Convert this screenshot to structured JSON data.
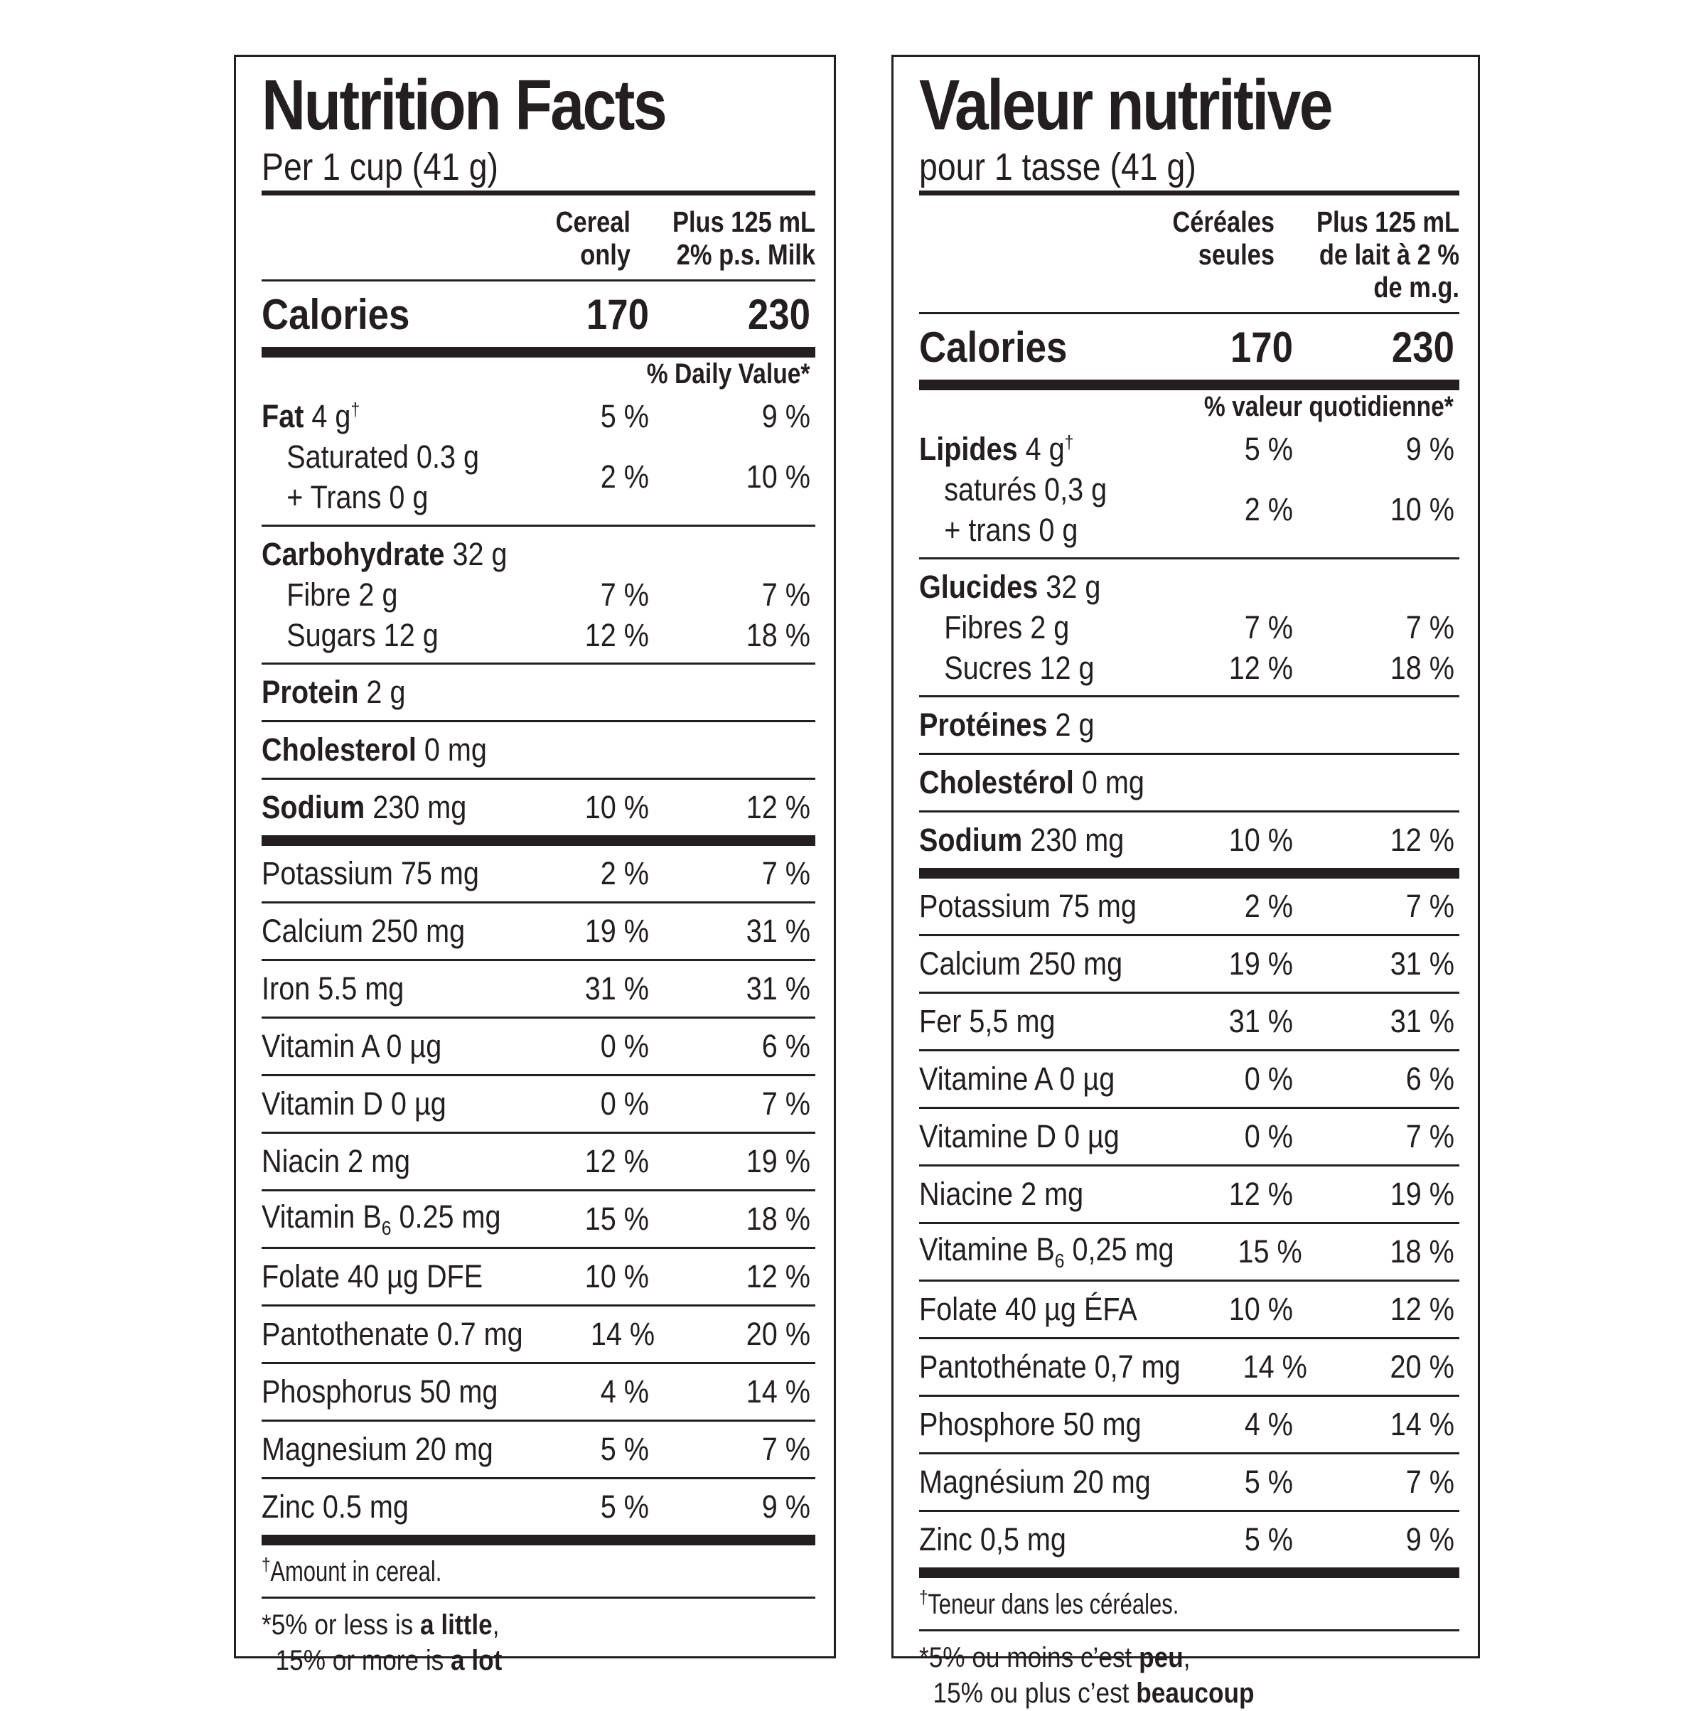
{
  "panels": [
    {
      "lang": "en",
      "title": "Nutrition Facts",
      "serving": "Per 1 cup (41 g)",
      "col_headers": [
        [
          "Cereal",
          "only"
        ],
        [
          "Plus 125 mL",
          "2% p.s. Milk"
        ]
      ],
      "calories": {
        "label": "Calories",
        "v1": "170",
        "v2": "230"
      },
      "dv_header": "% Daily Value*",
      "fat": {
        "name": "Fat",
        "amount": " 4 g",
        "dagger": "†",
        "v1": "5 %",
        "v2": "9 %",
        "sub_lines": [
          "Saturated 0.3 g",
          "+ Trans 0 g"
        ],
        "sub_v1": "2 %",
        "sub_v2": "10 %"
      },
      "carb": {
        "name": "Carbohydrate",
        "amount": " 32 g",
        "rows": [
          {
            "label": "Fibre 2 g",
            "v1": "7 %",
            "v2": "7 %"
          },
          {
            "label": "Sugars 12 g",
            "v1": "12 %",
            "v2": "18 %"
          }
        ]
      },
      "protein": {
        "name": "Protein",
        "amount": " 2 g"
      },
      "cholesterol": {
        "name": "Cholesterol",
        "amount": " 0 mg"
      },
      "sodium": {
        "name": "Sodium",
        "amount": " 230 mg",
        "v1": "10 %",
        "v2": "12 %"
      },
      "micros": [
        {
          "label": "Potassium 75 mg",
          "v1": "2 %",
          "v2": "7 %"
        },
        {
          "label": "Calcium 250 mg",
          "v1": "19 %",
          "v2": "31 %"
        },
        {
          "label": "Iron 5.5 mg",
          "v1": "31 %",
          "v2": "31 %"
        },
        {
          "label": "Vitamin A 0 µg",
          "v1": "0 %",
          "v2": "6 %"
        },
        {
          "label": "Vitamin D 0 µg",
          "v1": "0 %",
          "v2": "7 %"
        },
        {
          "label": "Niacin 2 mg",
          "v1": "12 %",
          "v2": "19 %"
        },
        {
          "label": "Vitamin B",
          "sub": "6",
          "rest": " 0.25 mg",
          "v1": "15 %",
          "v2": "18 %"
        },
        {
          "label": "Folate 40 µg DFE",
          "v1": "10 %",
          "v2": "12 %"
        },
        {
          "label": "Pantothenate 0.7 mg",
          "v1": "14 %",
          "v2": "20 %"
        },
        {
          "label": "Phosphorus 50 mg",
          "v1": "4 %",
          "v2": "14 %"
        },
        {
          "label": "Magnesium 20 mg",
          "v1": "5 %",
          "v2": "7 %"
        },
        {
          "label": "Zinc 0.5 mg",
          "v1": "5 %",
          "v2": "9 %"
        }
      ],
      "footnote_dagger": {
        "mark": "†",
        "text": " Amount in cereal."
      },
      "footnote_star": [
        [
          {
            "t": "*5% or less is "
          },
          {
            "t": "a little",
            "b": true
          },
          {
            "t": ","
          }
        ],
        [
          {
            "t": "  15% or more is "
          },
          {
            "t": "a lot",
            "b": true
          }
        ]
      ]
    },
    {
      "lang": "fr",
      "title": "Valeur nutritive",
      "serving": "pour 1 tasse (41 g)",
      "col_headers": [
        [
          "Céréales",
          "seules"
        ],
        [
          "Plus 125 mL",
          "de lait à 2 %",
          "de m.g."
        ]
      ],
      "calories": {
        "label": "Calories",
        "v1": "170",
        "v2": "230"
      },
      "dv_header": "% valeur quotidienne*",
      "fat": {
        "name": "Lipides",
        "amount": " 4 g",
        "dagger": "†",
        "v1": "5 %",
        "v2": "9 %",
        "sub_lines": [
          "saturés 0,3 g",
          "+ trans 0 g"
        ],
        "sub_v1": "2 %",
        "sub_v2": "10 %"
      },
      "carb": {
        "name": "Glucides",
        "amount": " 32 g",
        "rows": [
          {
            "label": "Fibres 2 g",
            "v1": "7 %",
            "v2": "7 %"
          },
          {
            "label": "Sucres 12 g",
            "v1": "12 %",
            "v2": "18 %"
          }
        ]
      },
      "protein": {
        "name": "Protéines",
        "amount": " 2 g"
      },
      "cholesterol": {
        "name": "Cholestérol",
        "amount": " 0 mg"
      },
      "sodium": {
        "name": "Sodium",
        "amount": " 230 mg",
        "v1": "10 %",
        "v2": "12 %"
      },
      "micros": [
        {
          "label": "Potassium 75 mg",
          "v1": "2 %",
          "v2": "7 %"
        },
        {
          "label": "Calcium 250 mg",
          "v1": "19 %",
          "v2": "31 %"
        },
        {
          "label": "Fer 5,5 mg",
          "v1": "31 %",
          "v2": "31 %"
        },
        {
          "label": "Vitamine A 0 µg",
          "v1": "0 %",
          "v2": "6 %"
        },
        {
          "label": "Vitamine D 0 µg",
          "v1": "0 %",
          "v2": "7 %"
        },
        {
          "label": "Niacine 2 mg",
          "v1": "12 %",
          "v2": "19 %"
        },
        {
          "label": "Vitamine B",
          "sub": "6",
          "rest": " 0,25 mg",
          "v1": "15 %",
          "v2": "18 %"
        },
        {
          "label": "Folate 40 µg ÉFA",
          "v1": "10 %",
          "v2": "12 %"
        },
        {
          "label": "Pantothénate 0,7 mg",
          "v1": "14 %",
          "v2": "20 %"
        },
        {
          "label": "Phosphore 50 mg",
          "v1": "4 %",
          "v2": "14 %"
        },
        {
          "label": "Magnésium 20 mg",
          "v1": "5 %",
          "v2": "7 %"
        },
        {
          "label": "Zinc 0,5 mg",
          "v1": "5 %",
          "v2": "9 %"
        }
      ],
      "footnote_dagger": {
        "mark": "†",
        "text": " Teneur dans les céréales."
      },
      "footnote_star": [
        [
          {
            "t": "*5% ou moins c’est "
          },
          {
            "t": "peu",
            "b": true
          },
          {
            "t": ","
          }
        ],
        [
          {
            "t": "  15% ou plus c’est "
          },
          {
            "t": "beaucoup",
            "b": true
          }
        ]
      ]
    }
  ]
}
